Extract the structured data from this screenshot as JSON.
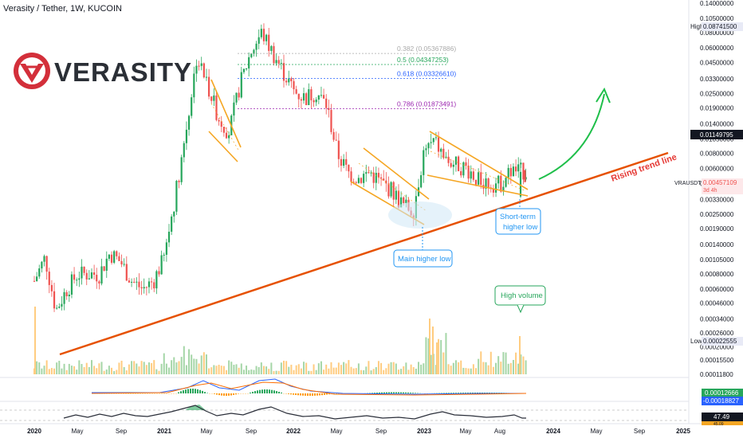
{
  "header": {
    "title": "Verasity / Tether, 1W, KUCOIN"
  },
  "brand": {
    "name": "VERASITY",
    "color": "#d32f3a"
  },
  "price_axis": {
    "ticks": [
      "0.14000000",
      "0.10500000",
      "0.08000000",
      "0.06000000",
      "0.04500000",
      "0.03300000",
      "0.02500000",
      "0.01900000",
      "0.01400000",
      "0.01050000",
      "0.00800000",
      "0.00600000",
      "0.00450000",
      "0.00330000",
      "0.00250000",
      "0.00190000",
      "0.00140000",
      "0.00105000",
      "0.00080000",
      "0.00060000",
      "0.00046000",
      "0.00034000",
      "0.00026000",
      "0.00020000",
      "0.00015500",
      "0.00011800"
    ],
    "labels": [
      {
        "text": "High",
        "value": "0.08741500",
        "tag": "high"
      },
      {
        "text": "",
        "value": "0.01149795",
        "tag": "dark"
      },
      {
        "text": "VRAUSDT",
        "value": "0.00457109",
        "sub": "3d 4h",
        "tag": "current"
      },
      {
        "text": "Low",
        "value": "0.00022555",
        "tag": "low"
      },
      {
        "text": "",
        "value": "0.00012666",
        "tag": "green"
      },
      {
        "text": "",
        "value": "-0.00018827",
        "tag": "blue"
      },
      {
        "text": "",
        "value": "47.49",
        "tag": "rsi"
      },
      {
        "text": "",
        "value": "45.09",
        "tag": "rsi2"
      }
    ]
  },
  "time_axis": [
    "2020",
    "May",
    "Sep",
    "2021",
    "May",
    "Sep",
    "2022",
    "May",
    "Sep",
    "2023",
    "May",
    "Aug",
    "2024",
    "May",
    "Sep",
    "2025"
  ],
  "fib_levels": [
    {
      "label": "0.382 (0.05367886)",
      "value": 0.05367886,
      "color": "#aaaaaa"
    },
    {
      "label": "0.5 (0.04347253)",
      "value": 0.04347253,
      "color": "#26a65b"
    },
    {
      "label": "0.618 (0.03326610)",
      "value": 0.0332661,
      "color": "#2962ff"
    },
    {
      "label": "0.786 (0.01873491)",
      "value": 0.01873491,
      "color": "#9c27b0"
    }
  ],
  "annotations": {
    "trend_line": "Rising trend line",
    "main_low": "Main higher low",
    "short_low_1": "Short-term",
    "short_low_2": "higher low",
    "high_volume": "High volume"
  },
  "colors": {
    "up": "#26a65b",
    "down": "#ef5350",
    "trend": "#e65100",
    "wedge": "#f5a623",
    "arrow": "#1fbf4a"
  },
  "chart_data": {
    "type": "candlestick",
    "title": "Verasity / Tether, 1W, KUCOIN",
    "scale": "log",
    "ylim": [
      0.000118,
      0.14
    ],
    "x_range": [
      "2020-01",
      "2025-02"
    ],
    "close_path": [
      {
        "x": "2020-01",
        "y": 0.0007
      },
      {
        "x": "2020-02",
        "y": 0.0011
      },
      {
        "x": "2020-03",
        "y": 0.0004
      },
      {
        "x": "2020-04",
        "y": 0.0006
      },
      {
        "x": "2020-05",
        "y": 0.0008
      },
      {
        "x": "2020-07",
        "y": 0.0008
      },
      {
        "x": "2020-08",
        "y": 0.0012
      },
      {
        "x": "2020-09",
        "y": 0.001
      },
      {
        "x": "2020-10",
        "y": 0.0007
      },
      {
        "x": "2020-11",
        "y": 0.0006
      },
      {
        "x": "2020-12",
        "y": 0.0007
      },
      {
        "x": "2021-01",
        "y": 0.0011
      },
      {
        "x": "2021-02",
        "y": 0.0035
      },
      {
        "x": "2021-03",
        "y": 0.012
      },
      {
        "x": "2021-04",
        "y": 0.05
      },
      {
        "x": "2021-05",
        "y": 0.03
      },
      {
        "x": "2021-06",
        "y": 0.016
      },
      {
        "x": "2021-07",
        "y": 0.012
      },
      {
        "x": "2021-08",
        "y": 0.03
      },
      {
        "x": "2021-09",
        "y": 0.055
      },
      {
        "x": "2021-10",
        "y": 0.08
      },
      {
        "x": "2021-11",
        "y": 0.055
      },
      {
        "x": "2021-12",
        "y": 0.038
      },
      {
        "x": "2022-01",
        "y": 0.026
      },
      {
        "x": "2022-02",
        "y": 0.023
      },
      {
        "x": "2022-03",
        "y": 0.026
      },
      {
        "x": "2022-04",
        "y": 0.02
      },
      {
        "x": "2022-05",
        "y": 0.008
      },
      {
        "x": "2022-06",
        "y": 0.0055
      },
      {
        "x": "2022-07",
        "y": 0.005
      },
      {
        "x": "2022-08",
        "y": 0.0056
      },
      {
        "x": "2022-09",
        "y": 0.0046
      },
      {
        "x": "2022-10",
        "y": 0.004
      },
      {
        "x": "2022-11",
        "y": 0.003
      },
      {
        "x": "2022-12",
        "y": 0.0027
      },
      {
        "x": "2023-01",
        "y": 0.0085
      },
      {
        "x": "2023-02",
        "y": 0.01
      },
      {
        "x": "2023-03",
        "y": 0.007
      },
      {
        "x": "2023-04",
        "y": 0.0065
      },
      {
        "x": "2023-05",
        "y": 0.006
      },
      {
        "x": "2023-06",
        "y": 0.0048
      },
      {
        "x": "2023-07",
        "y": 0.0046
      },
      {
        "x": "2023-08",
        "y": 0.0045
      },
      {
        "x": "2023-09",
        "y": 0.0057
      }
    ],
    "high": 0.087415,
    "low": 0.00022555,
    "last": 0.00457109
  }
}
